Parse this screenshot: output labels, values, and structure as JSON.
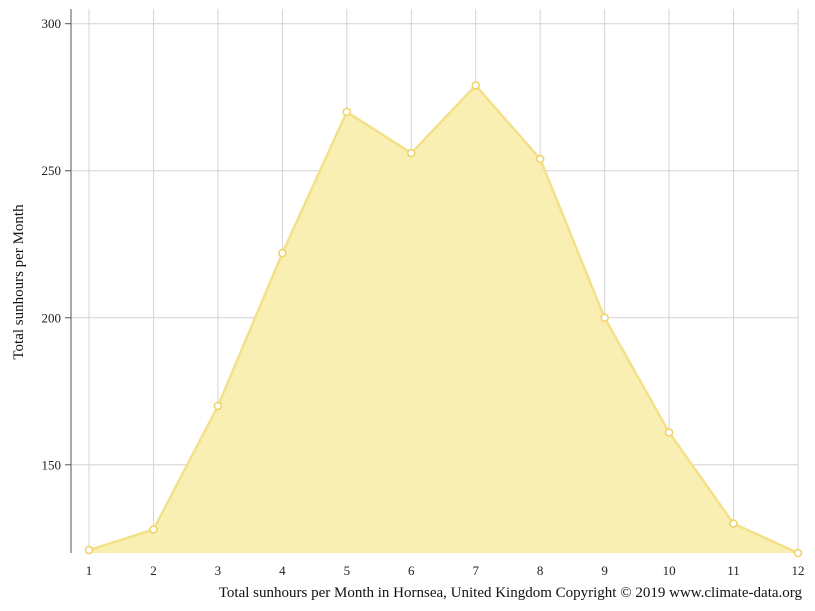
{
  "chart_data": {
    "type": "area",
    "x": [
      1,
      2,
      3,
      4,
      5,
      6,
      7,
      8,
      9,
      10,
      11,
      12
    ],
    "categories": [
      "1",
      "2",
      "3",
      "4",
      "5",
      "6",
      "7",
      "8",
      "9",
      "10",
      "11",
      "12"
    ],
    "series": [
      {
        "values": [
          121,
          128,
          170,
          222,
          270,
          256,
          279,
          254,
          200,
          161,
          130,
          120
        ],
        "color": "#f5e08a"
      }
    ],
    "ylabel": "Total sunhours per Month",
    "ylim": [
      120,
      305
    ],
    "yticks": [
      150,
      200,
      250,
      300
    ],
    "ytick_labels": [
      "150",
      "200",
      "250",
      "300"
    ],
    "grid": true,
    "fill_color": "#f9eeaf",
    "line_color": "#f5e08a"
  },
  "caption": "Total sunhours per Month in Hornsea, United Kingdom Copyright © 2019 www.climate-data.org"
}
